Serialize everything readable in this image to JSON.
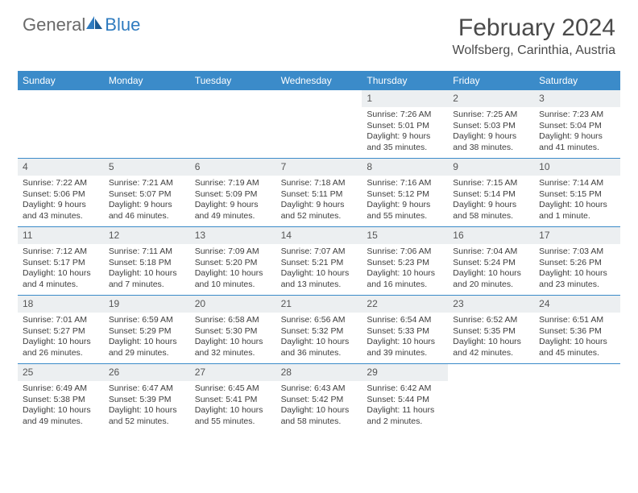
{
  "brand": {
    "general": "General",
    "blue": "Blue"
  },
  "header": {
    "month_title": "February 2024",
    "location": "Wolfsberg, Carinthia, Austria"
  },
  "colors": {
    "header_bar": "#3b8bc9",
    "daynum_bg": "#eceff1",
    "text": "#3d3d3d",
    "title": "#4a4a4a",
    "logo_gray": "#6a6a6a",
    "logo_blue": "#2f7bbf",
    "white": "#ffffff",
    "row_border": "#3b8bc9"
  },
  "weekdays": [
    "Sunday",
    "Monday",
    "Tuesday",
    "Wednesday",
    "Thursday",
    "Friday",
    "Saturday"
  ],
  "weeks": [
    [
      {
        "empty": true
      },
      {
        "empty": true
      },
      {
        "empty": true
      },
      {
        "empty": true
      },
      {
        "day": "1",
        "sunrise": "Sunrise: 7:26 AM",
        "sunset": "Sunset: 5:01 PM",
        "daylight": "Daylight: 9 hours and 35 minutes."
      },
      {
        "day": "2",
        "sunrise": "Sunrise: 7:25 AM",
        "sunset": "Sunset: 5:03 PM",
        "daylight": "Daylight: 9 hours and 38 minutes."
      },
      {
        "day": "3",
        "sunrise": "Sunrise: 7:23 AM",
        "sunset": "Sunset: 5:04 PM",
        "daylight": "Daylight: 9 hours and 41 minutes."
      }
    ],
    [
      {
        "day": "4",
        "sunrise": "Sunrise: 7:22 AM",
        "sunset": "Sunset: 5:06 PM",
        "daylight": "Daylight: 9 hours and 43 minutes."
      },
      {
        "day": "5",
        "sunrise": "Sunrise: 7:21 AM",
        "sunset": "Sunset: 5:07 PM",
        "daylight": "Daylight: 9 hours and 46 minutes."
      },
      {
        "day": "6",
        "sunrise": "Sunrise: 7:19 AM",
        "sunset": "Sunset: 5:09 PM",
        "daylight": "Daylight: 9 hours and 49 minutes."
      },
      {
        "day": "7",
        "sunrise": "Sunrise: 7:18 AM",
        "sunset": "Sunset: 5:11 PM",
        "daylight": "Daylight: 9 hours and 52 minutes."
      },
      {
        "day": "8",
        "sunrise": "Sunrise: 7:16 AM",
        "sunset": "Sunset: 5:12 PM",
        "daylight": "Daylight: 9 hours and 55 minutes."
      },
      {
        "day": "9",
        "sunrise": "Sunrise: 7:15 AM",
        "sunset": "Sunset: 5:14 PM",
        "daylight": "Daylight: 9 hours and 58 minutes."
      },
      {
        "day": "10",
        "sunrise": "Sunrise: 7:14 AM",
        "sunset": "Sunset: 5:15 PM",
        "daylight": "Daylight: 10 hours and 1 minute."
      }
    ],
    [
      {
        "day": "11",
        "sunrise": "Sunrise: 7:12 AM",
        "sunset": "Sunset: 5:17 PM",
        "daylight": "Daylight: 10 hours and 4 minutes."
      },
      {
        "day": "12",
        "sunrise": "Sunrise: 7:11 AM",
        "sunset": "Sunset: 5:18 PM",
        "daylight": "Daylight: 10 hours and 7 minutes."
      },
      {
        "day": "13",
        "sunrise": "Sunrise: 7:09 AM",
        "sunset": "Sunset: 5:20 PM",
        "daylight": "Daylight: 10 hours and 10 minutes."
      },
      {
        "day": "14",
        "sunrise": "Sunrise: 7:07 AM",
        "sunset": "Sunset: 5:21 PM",
        "daylight": "Daylight: 10 hours and 13 minutes."
      },
      {
        "day": "15",
        "sunrise": "Sunrise: 7:06 AM",
        "sunset": "Sunset: 5:23 PM",
        "daylight": "Daylight: 10 hours and 16 minutes."
      },
      {
        "day": "16",
        "sunrise": "Sunrise: 7:04 AM",
        "sunset": "Sunset: 5:24 PM",
        "daylight": "Daylight: 10 hours and 20 minutes."
      },
      {
        "day": "17",
        "sunrise": "Sunrise: 7:03 AM",
        "sunset": "Sunset: 5:26 PM",
        "daylight": "Daylight: 10 hours and 23 minutes."
      }
    ],
    [
      {
        "day": "18",
        "sunrise": "Sunrise: 7:01 AM",
        "sunset": "Sunset: 5:27 PM",
        "daylight": "Daylight: 10 hours and 26 minutes."
      },
      {
        "day": "19",
        "sunrise": "Sunrise: 6:59 AM",
        "sunset": "Sunset: 5:29 PM",
        "daylight": "Daylight: 10 hours and 29 minutes."
      },
      {
        "day": "20",
        "sunrise": "Sunrise: 6:58 AM",
        "sunset": "Sunset: 5:30 PM",
        "daylight": "Daylight: 10 hours and 32 minutes."
      },
      {
        "day": "21",
        "sunrise": "Sunrise: 6:56 AM",
        "sunset": "Sunset: 5:32 PM",
        "daylight": "Daylight: 10 hours and 36 minutes."
      },
      {
        "day": "22",
        "sunrise": "Sunrise: 6:54 AM",
        "sunset": "Sunset: 5:33 PM",
        "daylight": "Daylight: 10 hours and 39 minutes."
      },
      {
        "day": "23",
        "sunrise": "Sunrise: 6:52 AM",
        "sunset": "Sunset: 5:35 PM",
        "daylight": "Daylight: 10 hours and 42 minutes."
      },
      {
        "day": "24",
        "sunrise": "Sunrise: 6:51 AM",
        "sunset": "Sunset: 5:36 PM",
        "daylight": "Daylight: 10 hours and 45 minutes."
      }
    ],
    [
      {
        "day": "25",
        "sunrise": "Sunrise: 6:49 AM",
        "sunset": "Sunset: 5:38 PM",
        "daylight": "Daylight: 10 hours and 49 minutes."
      },
      {
        "day": "26",
        "sunrise": "Sunrise: 6:47 AM",
        "sunset": "Sunset: 5:39 PM",
        "daylight": "Daylight: 10 hours and 52 minutes."
      },
      {
        "day": "27",
        "sunrise": "Sunrise: 6:45 AM",
        "sunset": "Sunset: 5:41 PM",
        "daylight": "Daylight: 10 hours and 55 minutes."
      },
      {
        "day": "28",
        "sunrise": "Sunrise: 6:43 AM",
        "sunset": "Sunset: 5:42 PM",
        "daylight": "Daylight: 10 hours and 58 minutes."
      },
      {
        "day": "29",
        "sunrise": "Sunrise: 6:42 AM",
        "sunset": "Sunset: 5:44 PM",
        "daylight": "Daylight: 11 hours and 2 minutes."
      },
      {
        "empty": true
      },
      {
        "empty": true
      }
    ]
  ]
}
